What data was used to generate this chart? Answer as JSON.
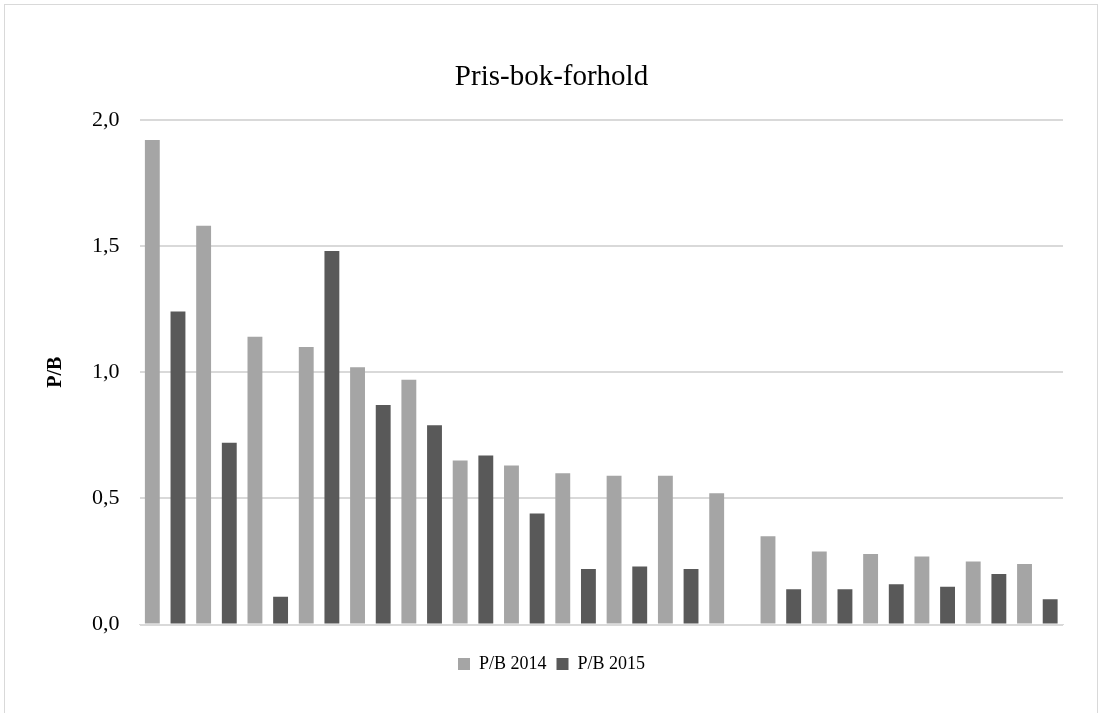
{
  "chart_data": {
    "type": "bar",
    "title": "Pris-bok-forhold",
    "ylabel": "P/B",
    "categories": [
      null,
      null,
      null,
      null,
      null,
      null,
      null,
      null,
      null,
      null,
      null,
      null,
      null,
      null,
      null,
      null,
      null,
      null
    ],
    "series": [
      {
        "name": "P/B 2014",
        "color": "#a5a5a5",
        "values": [
          1.92,
          1.58,
          1.14,
          1.1,
          1.02,
          0.97,
          0.65,
          0.63,
          0.6,
          0.59,
          0.59,
          0.52,
          0.35,
          0.29,
          0.28,
          0.27,
          0.25,
          0.24
        ]
      },
      {
        "name": "P/B 2015",
        "color": "#595959",
        "values": [
          1.24,
          0.72,
          0.11,
          1.48,
          0.87,
          0.79,
          0.67,
          0.44,
          0.22,
          0.23,
          0.22,
          null,
          0.14,
          0.14,
          0.16,
          0.15,
          0.2,
          0.1
        ]
      }
    ],
    "ylim": [
      0,
      2
    ],
    "yticks": [
      {
        "value": 0,
        "label": "0,0"
      },
      {
        "value": 0.5,
        "label": "0,5"
      },
      {
        "value": 1,
        "label": "1,0"
      },
      {
        "value": 1.5,
        "label": "1,5"
      },
      {
        "value": 2,
        "label": "2,0"
      }
    ],
    "grid": "y",
    "legend": "bottom"
  }
}
